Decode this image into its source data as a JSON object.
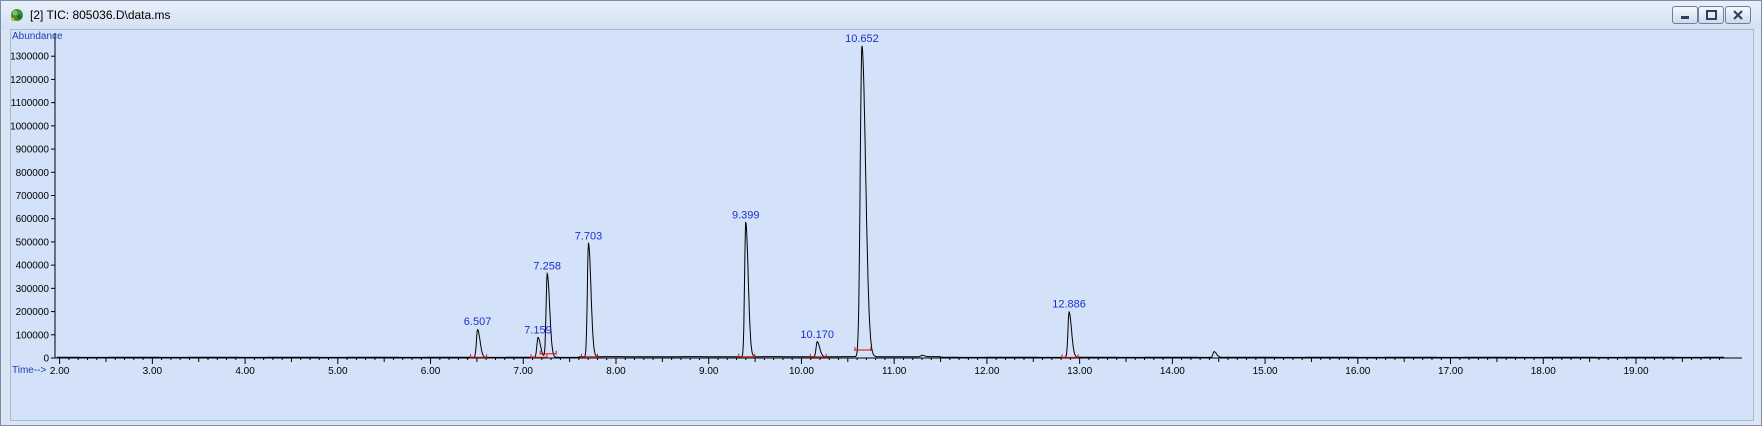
{
  "window": {
    "title": "[2] TIC: 805036.D\\data.ms",
    "icon": "chromatogram-app-icon",
    "buttons": [
      "minimize",
      "restore",
      "close"
    ]
  },
  "chart_data": {
    "type": "line",
    "ylabel": "Abundance",
    "xlabel": "Time-->",
    "ylim": [
      0,
      1400000
    ],
    "xlim": [
      1.95,
      20.1
    ],
    "x_ticks": [
      "2.00",
      "3.00",
      "4.00",
      "5.00",
      "6.00",
      "7.00",
      "8.00",
      "9.00",
      "10.00",
      "11.00",
      "12.00",
      "13.00",
      "14.00",
      "15.00",
      "16.00",
      "17.00",
      "18.00",
      "19.00"
    ],
    "y_ticks": [
      "0",
      "100000",
      "200000",
      "300000",
      "400000",
      "500000",
      "600000",
      "700000",
      "800000",
      "900000",
      "1000000",
      "1100000",
      "1200000",
      "1300000"
    ],
    "grid": false,
    "peaks": [
      {
        "rt": 6.507,
        "label": "6.507",
        "height": 120000
      },
      {
        "rt": 7.159,
        "label": "7.159",
        "height": 85000
      },
      {
        "rt": 7.258,
        "label": "7.258",
        "height": 360000
      },
      {
        "rt": 7.703,
        "label": "7.703",
        "height": 490000
      },
      {
        "rt": 9.399,
        "label": "9.399",
        "height": 580000
      },
      {
        "rt": 10.17,
        "label": "10.170",
        "height": 65000
      },
      {
        "rt": 10.652,
        "label": "10.652",
        "height": 1340000
      },
      {
        "rt": 12.886,
        "label": "12.886",
        "height": 195000
      }
    ],
    "minor_peaks": [
      {
        "rt": 14.45,
        "height": 25000
      },
      {
        "rt": 11.3,
        "height": 6000
      }
    ],
    "colors": {
      "trace": "#000000",
      "integration": "#d01010",
      "labels": "#1d2fd0"
    }
  }
}
